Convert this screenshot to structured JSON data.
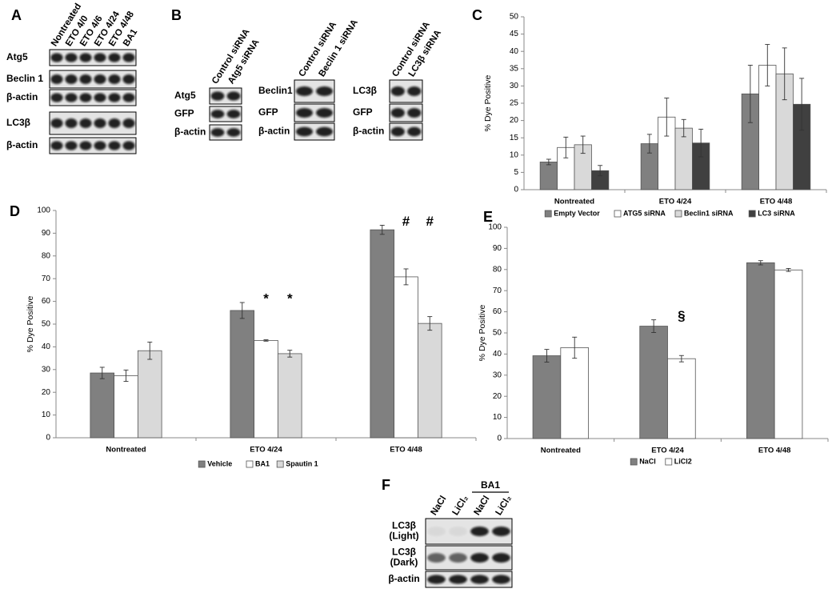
{
  "panel_labels": [
    "A",
    "B",
    "C",
    "D",
    "E",
    "F"
  ],
  "blots": [
    {
      "columns": [
        "Nontreated",
        "ETO 4/0",
        "ETO 4/6",
        "ETO 4/24",
        "ETO 4/48",
        "BA1"
      ],
      "rows": [
        [
          "Atg5"
        ],
        [
          "Beclin 1"
        ],
        [
          "β-actin"
        ],
        [
          "LC3β"
        ],
        [
          "β-actin"
        ]
      ]
    },
    {
      "columns": [
        "Control siRNA",
        "Atg5 siRNA"
      ],
      "rows": [
        [
          "Atg5"
        ],
        [
          "GFP"
        ],
        [
          "β-actin"
        ]
      ]
    },
    {
      "columns": [
        "Control siRNA",
        "Beclin 1 siRNA"
      ],
      "rows": [
        [
          "Beclin1"
        ],
        [
          "GFP"
        ],
        [
          "β-actin"
        ]
      ]
    },
    {
      "columns": [
        "Control siRNA",
        "LC3β siRNA"
      ],
      "rows": [
        [
          "LC3β"
        ],
        [
          "GFP"
        ],
        [
          "β-actin"
        ]
      ]
    },
    {
      "columns": [
        "NaCl",
        "LiCl₂",
        "NaCl",
        "LiCl₂"
      ],
      "group": "BA1",
      "rows": [
        [
          "LC3β",
          "(Light)"
        ],
        [
          "LC3β",
          "(Dark)"
        ],
        [
          "β-actin"
        ]
      ]
    }
  ],
  "chart_data": [
    {
      "type": "bar",
      "ylabel": "% Dye Positive",
      "categories": [
        "Nontreated",
        "ETO 4/24",
        "ETO 4/48"
      ],
      "series": [
        {
          "name": "Empty Vector",
          "color": "#808080",
          "values": [
            8,
            13.3,
            27.7
          ],
          "errors": [
            0.8,
            2.7,
            8.3
          ]
        },
        {
          "name": "ATG5 siRNA",
          "color": "#ffffff",
          "values": [
            12.2,
            21,
            36
          ],
          "errors": [
            3,
            5.5,
            6
          ]
        },
        {
          "name": "Beclin1 siRNA",
          "color": "#d9d9d9",
          "values": [
            13,
            17.8,
            33.5
          ],
          "errors": [
            2.5,
            2.5,
            7.5
          ]
        },
        {
          "name": "LC3 siRNA",
          "color": "#404040",
          "values": [
            5.5,
            13.5,
            24.7
          ],
          "errors": [
            1.5,
            4,
            7.5
          ]
        }
      ],
      "ylim": [
        0,
        50
      ],
      "yticks": [
        0,
        5,
        10,
        15,
        20,
        25,
        30,
        35,
        40,
        45,
        50
      ],
      "legend": "bottom"
    },
    {
      "type": "bar",
      "ylabel": "% Dye Positive",
      "categories": [
        "Nontreated",
        "ETO 4/24",
        "ETO 4/48"
      ],
      "series": [
        {
          "name": "Vehicle",
          "color": "#808080",
          "values": [
            28.5,
            56,
            91.5
          ],
          "errors": [
            2.5,
            3.5,
            2
          ]
        },
        {
          "name": "BA1",
          "color": "#ffffff",
          "values": [
            27.3,
            42.8,
            70.8
          ],
          "errors": [
            2.5,
            0.3,
            3.5
          ],
          "markers": [
            null,
            "*",
            "#"
          ]
        },
        {
          "name": "Spautin 1",
          "color": "#d9d9d9",
          "values": [
            38.3,
            37,
            50.3
          ],
          "errors": [
            3.8,
            1.5,
            3
          ],
          "markers": [
            null,
            "*",
            "#"
          ]
        }
      ],
      "ylim": [
        0,
        100
      ],
      "yticks": [
        0,
        10,
        20,
        30,
        40,
        50,
        60,
        70,
        80,
        90,
        100
      ],
      "legend": "bottom"
    },
    {
      "type": "bar",
      "ylabel": "% Dye Positive",
      "categories": [
        "Nontreated",
        "ETO 4/24",
        "ETO 4/48"
      ],
      "series": [
        {
          "name": "NaCl",
          "color": "#808080",
          "values": [
            39.2,
            53.2,
            83.2
          ],
          "errors": [
            3,
            3,
            1
          ]
        },
        {
          "name": "LiCl2",
          "color": "#ffffff",
          "values": [
            43,
            37.8,
            79.8
          ],
          "errors": [
            5,
            1.5,
            0.7
          ],
          "markers": [
            null,
            "§",
            null
          ]
        }
      ],
      "ylim": [
        0,
        100
      ],
      "yticks": [
        0,
        10,
        20,
        30,
        40,
        50,
        60,
        70,
        80,
        90,
        100
      ],
      "legend": "bottom"
    }
  ]
}
